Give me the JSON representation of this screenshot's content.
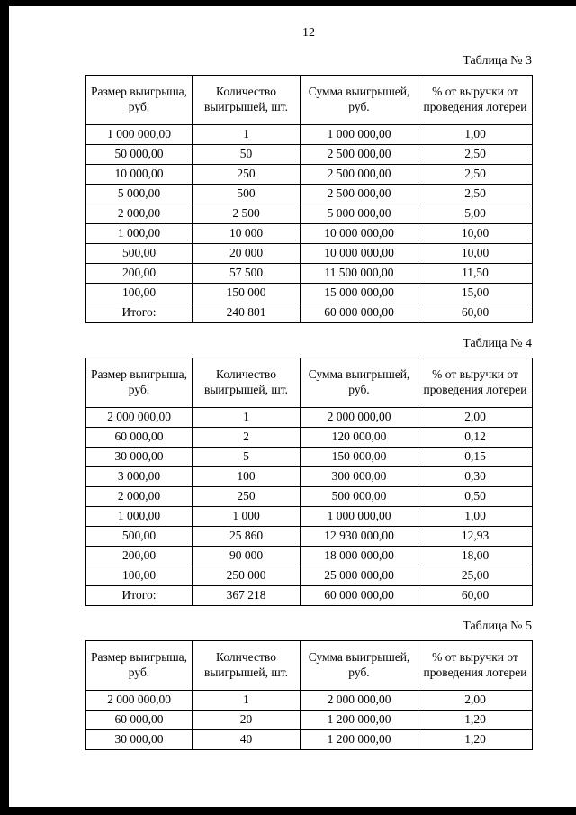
{
  "page": {
    "number": "12"
  },
  "tables": [
    {
      "label": "Таблица № 3",
      "headers": [
        "Размер выигрыша, руб.",
        "Количество выигрышей, шт.",
        "Сумма выигрышей, руб.",
        "% от выручки от проведения лотереи"
      ],
      "rows": [
        [
          "1 000 000,00",
          "1",
          "1 000 000,00",
          "1,00"
        ],
        [
          "50 000,00",
          "50",
          "2 500 000,00",
          "2,50"
        ],
        [
          "10 000,00",
          "250",
          "2 500 000,00",
          "2,50"
        ],
        [
          "5 000,00",
          "500",
          "2 500 000,00",
          "2,50"
        ],
        [
          "2 000,00",
          "2 500",
          "5 000 000,00",
          "5,00"
        ],
        [
          "1 000,00",
          "10 000",
          "10 000 000,00",
          "10,00"
        ],
        [
          "500,00",
          "20 000",
          "10 000 000,00",
          "10,00"
        ],
        [
          "200,00",
          "57 500",
          "11 500 000,00",
          "11,50"
        ],
        [
          "100,00",
          "150 000",
          "15 000 000,00",
          "15,00"
        ],
        [
          "Итого:",
          "240 801",
          "60 000 000,00",
          "60,00"
        ]
      ]
    },
    {
      "label": "Таблица № 4",
      "headers": [
        "Размер выигрыша, руб.",
        "Количество выигрышей, шт.",
        "Сумма выигрышей, руб.",
        "% от выручки от проведения лотереи"
      ],
      "rows": [
        [
          "2 000 000,00",
          "1",
          "2 000 000,00",
          "2,00"
        ],
        [
          "60 000,00",
          "2",
          "120 000,00",
          "0,12"
        ],
        [
          "30 000,00",
          "5",
          "150 000,00",
          "0,15"
        ],
        [
          "3 000,00",
          "100",
          "300 000,00",
          "0,30"
        ],
        [
          "2 000,00",
          "250",
          "500 000,00",
          "0,50"
        ],
        [
          "1 000,00",
          "1 000",
          "1 000 000,00",
          "1,00"
        ],
        [
          "500,00",
          "25 860",
          "12 930 000,00",
          "12,93"
        ],
        [
          "200,00",
          "90 000",
          "18 000 000,00",
          "18,00"
        ],
        [
          "100,00",
          "250 000",
          "25 000 000,00",
          "25,00"
        ],
        [
          "Итого:",
          "367 218",
          "60 000 000,00",
          "60,00"
        ]
      ]
    },
    {
      "label": "Таблица № 5",
      "headers": [
        "Размер выигрыша, руб.",
        "Количество выигрышей, шт.",
        "Сумма выигрышей, руб.",
        "% от выручки от проведения лотереи"
      ],
      "rows": [
        [
          "2 000 000,00",
          "1",
          "2 000 000,00",
          "2,00"
        ],
        [
          "60 000,00",
          "20",
          "1 200 000,00",
          "1,20"
        ],
        [
          "30 000,00",
          "40",
          "1 200 000,00",
          "1,20"
        ]
      ]
    }
  ]
}
